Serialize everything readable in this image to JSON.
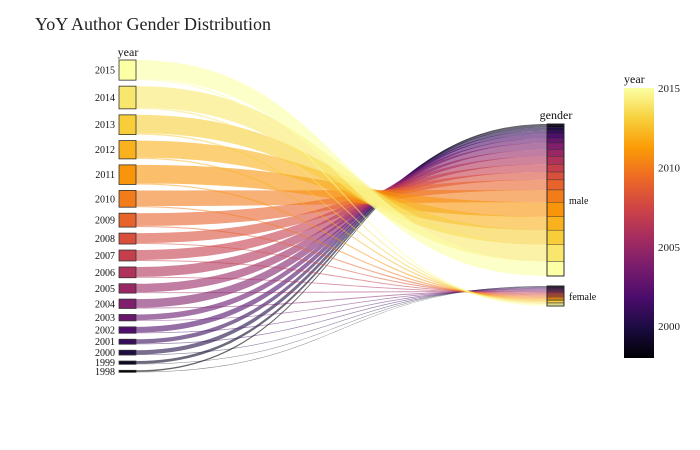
{
  "chart_data": {
    "type": "parallel_categories",
    "title": "YoY Author Gender Distribution",
    "dimensions": [
      "year",
      "gender"
    ],
    "years": [
      1998,
      1999,
      2000,
      2001,
      2002,
      2003,
      2004,
      2005,
      2006,
      2007,
      2008,
      2009,
      2010,
      2011,
      2012,
      2013,
      2014,
      2015
    ],
    "genders": [
      "male",
      "female"
    ],
    "counts": {
      "male": [
        1,
        2,
        3,
        3,
        4,
        4,
        6,
        6,
        7,
        7,
        7,
        9,
        11,
        13,
        12,
        13,
        15,
        13
      ],
      "female": [
        0.2,
        0.3,
        0.4,
        0.5,
        0.5,
        0.5,
        0.6,
        0.6,
        0.6,
        0.7,
        0.7,
        0.8,
        0.8,
        0.8,
        0.9,
        0.9,
        1,
        1.2
      ]
    },
    "colorbar": {
      "title": "year",
      "range": [
        1998,
        2015
      ],
      "ticks": [
        2000,
        2005,
        2010,
        2015
      ],
      "colorscale": "inferno",
      "stops": [
        "#000004",
        "#1b0c41",
        "#4a0c6b",
        "#781c6d",
        "#a52c60",
        "#cf4446",
        "#ed6925",
        "#fb9b06",
        "#f7d13d",
        "#fcffa4"
      ]
    }
  }
}
